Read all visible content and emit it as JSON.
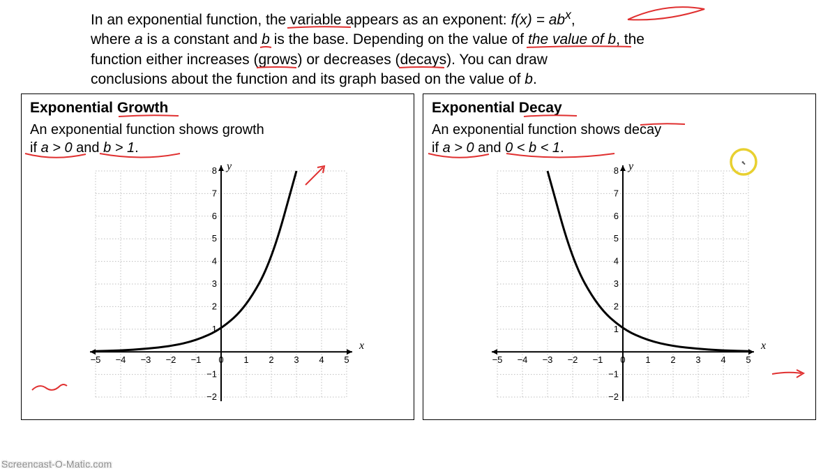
{
  "intro": {
    "line1a": "In an exponential function, the ",
    "line1b": "variable",
    "line1c": " appears as an exponent: ",
    "func": "f(x) = ab",
    "exp": "x",
    "line1d": ",",
    "line2a": "where ",
    "a": "a",
    "line2b": " is a constant and ",
    "b": "b",
    "line2c": " is the base. Depending on the value of ",
    "b2": "b",
    "line2d": ", the",
    "line3": "function either increases (grows) or decreases (decays). You can draw",
    "line4a": "conclusions about the function and its graph based on the value of ",
    "b3": "b",
    "line4b": "."
  },
  "growth": {
    "title": "Exponential Growth",
    "sub1": "An exponential function shows growth",
    "sub2a": "if ",
    "sub2b": "a > 0",
    "sub2c": " and ",
    "sub2d": "b > 1",
    "sub2e": ".",
    "chart": {
      "type": "line",
      "xmin": -5,
      "xmax": 5,
      "ymin": -2,
      "ymax": 8,
      "xlabel": "x",
      "ylabel": "y",
      "xticks": [
        -5,
        -4,
        -3,
        -2,
        -1,
        0,
        1,
        2,
        3,
        4,
        5
      ],
      "yticks": [
        -2,
        -1,
        0,
        1,
        2,
        3,
        4,
        5,
        6,
        7,
        8
      ],
      "curve": [
        {
          "x": -5,
          "y": 0.03
        },
        {
          "x": -4,
          "y": 0.06
        },
        {
          "x": -3,
          "y": 0.13
        },
        {
          "x": -2,
          "y": 0.25
        },
        {
          "x": -1,
          "y": 0.5
        },
        {
          "x": 0,
          "y": 1
        },
        {
          "x": 1,
          "y": 2
        },
        {
          "x": 2,
          "y": 4
        },
        {
          "x": 3,
          "y": 8
        }
      ],
      "grid_color": "#bfbfbf",
      "axis_color": "#000000",
      "curve_color": "#000000",
      "curve_width": 3,
      "tick_fontsize": 13,
      "label_fontsize": 16
    }
  },
  "decay": {
    "title": "Exponential Decay",
    "sub1": "An exponential function shows decay",
    "sub2a": "if ",
    "sub2b": "a > 0",
    "sub2c": " and ",
    "sub2d": "0 < b < 1",
    "sub2e": ".",
    "chart": {
      "type": "line",
      "xmin": -5,
      "xmax": 5,
      "ymin": -2,
      "ymax": 8,
      "xlabel": "x",
      "ylabel": "y",
      "xticks": [
        -5,
        -4,
        -3,
        -2,
        -1,
        0,
        1,
        2,
        3,
        4,
        5
      ],
      "yticks": [
        -2,
        -1,
        0,
        1,
        2,
        3,
        4,
        5,
        6,
        7,
        8
      ],
      "curve": [
        {
          "x": -3,
          "y": 8
        },
        {
          "x": -2,
          "y": 4
        },
        {
          "x": -1,
          "y": 2
        },
        {
          "x": 0,
          "y": 1
        },
        {
          "x": 1,
          "y": 0.5
        },
        {
          "x": 2,
          "y": 0.25
        },
        {
          "x": 3,
          "y": 0.13
        },
        {
          "x": 4,
          "y": 0.06
        },
        {
          "x": 5,
          "y": 0.03
        }
      ],
      "grid_color": "#bfbfbf",
      "axis_color": "#000000",
      "curve_color": "#000000",
      "curve_width": 3,
      "tick_fontsize": 13,
      "label_fontsize": 16
    }
  },
  "annotations": {
    "red_color": "#e03030",
    "yellow_color": "#e8d030"
  },
  "watermark": "Screencast-O-Matic.com"
}
